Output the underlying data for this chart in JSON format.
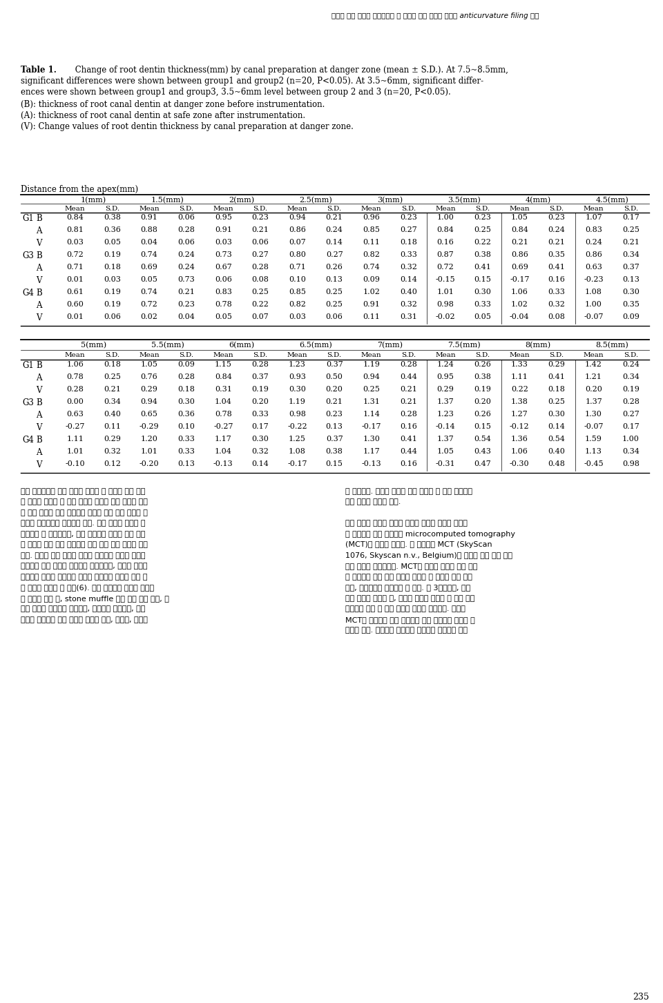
{
  "page_header": "만곡된 근관 성형시 스테인레스 강 파일과 니켈 티타늄 파일의 anticurvature filing 영향",
  "table_title_bold": "Table 1.",
  "title_line1_after_bold": " Change of root dentin thickness(mm) by canal preparation at danger zone (mean ± S.D.). At 7.5~8.5mm,",
  "title_line2": "significant differences were shown between group1 and group2 (n=20, P<0.05). At 3.5~6mm, significant differ-",
  "title_line3": "ences were shown between group1 and group3, 3.5~6mm level between group 2 and 3 (n=20, P<0.05).",
  "note_B": "(B): thickness of root canal dentin at danger zone before instrumentation.",
  "note_A": "(A): thickness of root canal dentin at safe zone after instrumentation.",
  "note_V": "(V): Change values of root dentin thickness by canal preparation at danger zone.",
  "section_label": "Distance from the apex(mm)",
  "col_groups_top": [
    "1(mm)",
    "1.5(mm)",
    "2(mm)",
    "2.5(mm)",
    "3(mm)",
    "3.5(mm)",
    "4(mm)",
    "4.5(mm)"
  ],
  "col_groups_bottom": [
    "5(mm)",
    "5.5(mm)",
    "6(mm)",
    "6.5(mm)",
    "7(mm)",
    "7.5(mm)",
    "8(mm)",
    "8.5(mm)"
  ],
  "row_group_labels": [
    "G1",
    "",
    "",
    "G3",
    "",
    "",
    "G4",
    "",
    ""
  ],
  "row_bav_labels": [
    "B",
    "A",
    "V",
    "B",
    "A",
    "V",
    "B",
    "A",
    "V"
  ],
  "data_top": [
    [
      0.84,
      0.38,
      0.91,
      0.06,
      0.95,
      0.23,
      0.94,
      0.21,
      0.96,
      0.23,
      1.0,
      0.23,
      1.05,
      0.23,
      1.07,
      0.17
    ],
    [
      0.81,
      0.36,
      0.88,
      0.28,
      0.91,
      0.21,
      0.86,
      0.24,
      0.85,
      0.27,
      0.84,
      0.25,
      0.84,
      0.24,
      0.83,
      0.25
    ],
    [
      0.03,
      0.05,
      0.04,
      0.06,
      0.03,
      0.06,
      0.07,
      0.14,
      0.11,
      0.18,
      0.16,
      0.22,
      0.21,
      0.21,
      0.24,
      0.21
    ],
    [
      0.72,
      0.19,
      0.74,
      0.24,
      0.73,
      0.27,
      0.8,
      0.27,
      0.82,
      0.33,
      0.87,
      0.38,
      0.86,
      0.35,
      0.86,
      0.34
    ],
    [
      0.71,
      0.18,
      0.69,
      0.24,
      0.67,
      0.28,
      0.71,
      0.26,
      0.74,
      0.32,
      0.72,
      0.41,
      0.69,
      0.41,
      0.63,
      0.37
    ],
    [
      0.01,
      0.03,
      0.05,
      0.73,
      0.06,
      0.08,
      0.1,
      0.13,
      0.09,
      0.14,
      -0.15,
      0.15,
      -0.17,
      0.16,
      -0.23,
      0.13
    ],
    [
      0.61,
      0.19,
      0.74,
      0.21,
      0.83,
      0.25,
      0.85,
      0.25,
      1.02,
      0.4,
      1.01,
      0.3,
      1.06,
      0.33,
      1.08,
      0.3
    ],
    [
      0.6,
      0.19,
      0.72,
      0.23,
      0.78,
      0.22,
      0.82,
      0.25,
      0.91,
      0.32,
      0.98,
      0.33,
      1.02,
      0.32,
      1.0,
      0.35
    ],
    [
      0.01,
      0.06,
      0.02,
      0.04,
      0.05,
      0.07,
      0.03,
      0.06,
      0.11,
      0.31,
      -0.02,
      0.05,
      -0.04,
      0.08,
      -0.07,
      0.09
    ]
  ],
  "data_bottom": [
    [
      1.06,
      0.18,
      1.05,
      0.09,
      1.15,
      0.28,
      1.23,
      0.37,
      1.19,
      0.28,
      1.24,
      0.26,
      1.33,
      0.29,
      1.42,
      0.24
    ],
    [
      0.78,
      0.25,
      0.76,
      0.28,
      0.84,
      0.37,
      0.93,
      0.5,
      0.94,
      0.44,
      0.95,
      0.38,
      1.11,
      0.41,
      1.21,
      0.34
    ],
    [
      0.28,
      0.21,
      0.29,
      0.18,
      0.31,
      0.19,
      0.3,
      0.2,
      0.25,
      0.21,
      0.29,
      0.19,
      0.22,
      0.18,
      0.2,
      0.19
    ],
    [
      0.0,
      0.34,
      0.94,
      0.3,
      1.04,
      0.2,
      1.19,
      0.21,
      1.31,
      0.21,
      1.37,
      0.2,
      1.38,
      0.25,
      1.37,
      0.28
    ],
    [
      0.63,
      0.4,
      0.65,
      0.36,
      0.78,
      0.33,
      0.98,
      0.23,
      1.14,
      0.28,
      1.23,
      0.26,
      1.27,
      0.3,
      1.3,
      0.27
    ],
    [
      -0.27,
      0.11,
      -0.29,
      0.1,
      -0.27,
      0.17,
      -0.22,
      0.13,
      -0.17,
      0.16,
      -0.14,
      0.15,
      -0.12,
      0.14,
      -0.07,
      0.17
    ],
    [
      1.11,
      0.29,
      1.2,
      0.33,
      1.17,
      0.3,
      1.25,
      0.37,
      1.3,
      0.41,
      1.37,
      0.54,
      1.36,
      0.54,
      1.59,
      1.0
    ],
    [
      1.01,
      0.32,
      1.01,
      0.33,
      1.04,
      0.32,
      1.08,
      0.38,
      1.17,
      0.44,
      1.05,
      0.43,
      1.06,
      0.4,
      1.13,
      0.34
    ],
    [
      -0.1,
      0.12,
      -0.2,
      0.13,
      -0.13,
      0.14,
      -0.17,
      0.15,
      -0.13,
      0.16,
      -0.31,
      0.47,
      -0.3,
      0.48,
      -0.45,
      0.98
    ]
  ],
  "body_left_lines": [
    "도를 동일화시킨 후에 실험을 시행할 수 있으나 레진 블록",
    "을 이용해 실험을 할 경우 모의로 만들어 놓은 근관의 형태",
    "가 실제 근관과 달리 단순하게 만들어 졌고 실험 결과를 이",
    "자원적 평면에서만 비교해야 한다. 또한 레진의 강도가 상",
    "아질보다 더 부드러우며, 근관 성형시에 기구와 레진 사이",
    "에 마찰로 인해 열이 발생하며 이에 의해 레진 블록이 연화",
    "된다. 이렇게 레진 블록이 연화된 경우에는 레진이 기구의",
    "삭제날에 달라 붙어서 삭제력을 감소시키며, 기구의 운동을",
    "제한시켜 기구의 파절이나 기구로 상아질을 삭제할 때와 다",
    "른 양상을 초래할 수 있다(6). 연속 절단법은 치아를 수평면",
    "을 따라서 자른 뒤, stone muffle 내에 다시 모아 슬전, 슬",
    "후의 결과를 비교하는 방법인데, 파괴적인 방법이며, 관찰",
    "하려는 수평면의 수를 늘리면 근관의 길이, 연속성, 만공도"
  ],
  "body_right_lines": [
    "가 감소한다. 따라서 슬전에 미리 결정한 몇 면만 한정해서",
    "봐야 한다는 한계가 있다.",
    "",
    "이전 방법의 한계를 극복해 근관을 성형한 결과를 비교하",
    "는 혁신적인 방법 한가지가 microcomputed tomography",
    "(MCT)를 이용한 것이다. 본 연구에는 MCT (SkyScan",
    "1076, Skyscan n.v., Belgium)를 사용해 근관 성형 전후",
    "근관 형태를 비교하였다. MCT를 사용해 실험을 하면 치아",
    "를 파괴하지 않고 어떤 부위도 관찰할 수 있으며 이를 이싰",
    "원적, 삼싰원으로 시각화할 수 있다. 또 3싰원에서, 근관",
    "성형 전후의 치아의 내, 외부와 관련된 신뢰할 수 있는 양적",
    "데이터를 얻을 수 있고 정량적 분석도 가능하다. 그러나",
    "MCT를 사용해서 얻은 이미지를 과대 해석하지 않도록 주",
    "의해야 한다. 이미지를 형성하는 과정에서 날카로운 에지"
  ],
  "page_number": "235"
}
